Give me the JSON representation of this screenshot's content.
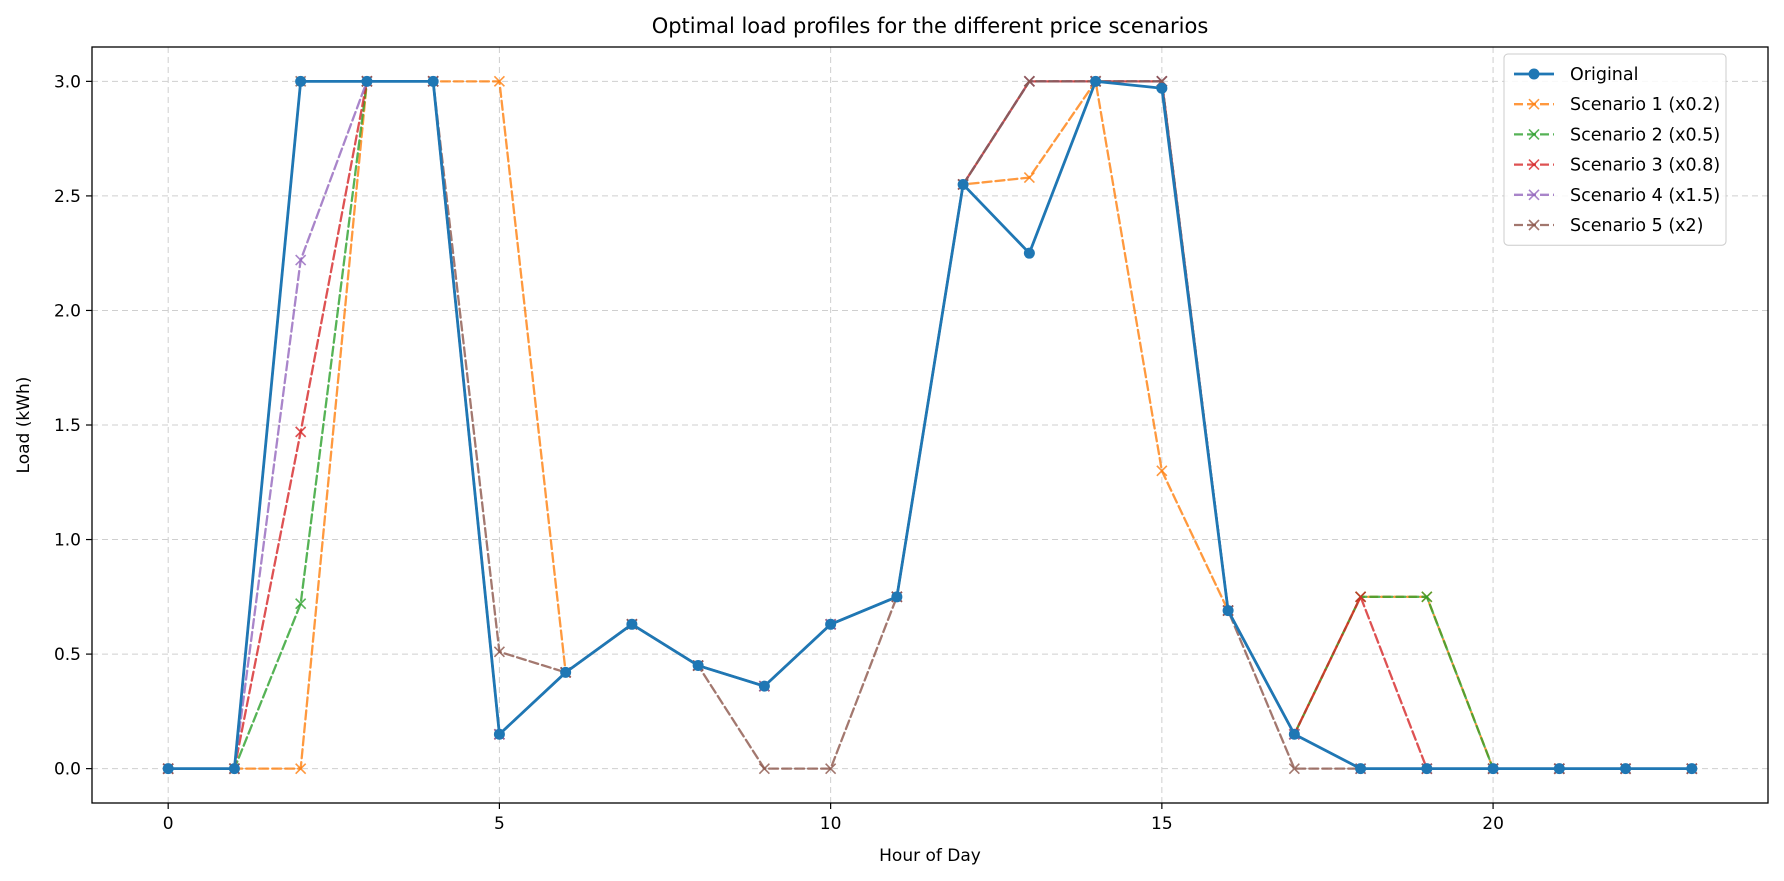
{
  "chart_data": {
    "type": "line",
    "title": "Optimal load profiles for the different price scenarios",
    "xlabel": "Hour of Day",
    "ylabel": "Load (kWh)",
    "xlim": [
      -1.15,
      24.15
    ],
    "ylim": [
      -0.15,
      3.15
    ],
    "xticks": [
      0,
      5,
      10,
      15,
      20
    ],
    "yticks": [
      0.0,
      0.5,
      1.0,
      1.5,
      2.0,
      2.5,
      3.0
    ],
    "xtick_labels": [
      "0",
      "5",
      "10",
      "15",
      "20"
    ],
    "ytick_labels": [
      "0.0",
      "0.5",
      "1.0",
      "1.5",
      "2.0",
      "2.5",
      "3.0"
    ],
    "grid": true,
    "legend_position": "top-right",
    "x": [
      0,
      1,
      2,
      3,
      4,
      5,
      6,
      7,
      8,
      9,
      10,
      11,
      12,
      13,
      14,
      15,
      16,
      17,
      18,
      19,
      20,
      21,
      22,
      23
    ],
    "series": [
      {
        "name": "Original",
        "color": "#1f77b4",
        "style": "solid",
        "marker": "circle",
        "values": [
          0,
          0,
          3,
          3,
          3,
          0.15,
          0.42,
          0.63,
          0.45,
          0.36,
          0.63,
          0.75,
          2.55,
          2.25,
          3,
          2.97,
          0.69,
          0.15,
          0,
          0,
          0,
          0,
          0,
          0
        ]
      },
      {
        "name": "Scenario 1 (x0.2)",
        "color": "#ff7f0e",
        "style": "dashed",
        "marker": "x",
        "values": [
          0,
          0,
          0,
          3,
          3,
          3,
          0.42,
          0.63,
          0.45,
          0.36,
          0.63,
          0.75,
          2.55,
          2.58,
          3,
          1.3,
          0.69,
          0.15,
          0.75,
          0.75,
          0,
          0,
          0,
          0
        ]
      },
      {
        "name": "Scenario 2 (x0.5)",
        "color": "#2ca02c",
        "style": "dashed",
        "marker": "x",
        "values": [
          0,
          0,
          0.72,
          3,
          3,
          0.15,
          0.42,
          0.63,
          0.45,
          0.36,
          0.63,
          0.75,
          2.55,
          3,
          3,
          3,
          0.69,
          0.15,
          0.75,
          0.75,
          0,
          0,
          0,
          0
        ]
      },
      {
        "name": "Scenario 3 (x0.8)",
        "color": "#d62728",
        "style": "dashed",
        "marker": "x",
        "values": [
          0,
          0,
          1.47,
          3,
          3,
          0.15,
          0.42,
          0.63,
          0.45,
          0.36,
          0.63,
          0.75,
          2.55,
          3,
          3,
          3,
          0.69,
          0.15,
          0.75,
          0,
          0,
          0,
          0,
          0
        ]
      },
      {
        "name": "Scenario 4 (x1.5)",
        "color": "#9467bd",
        "style": "dashed",
        "marker": "x",
        "values": [
          0,
          0,
          2.22,
          3,
          3,
          0.15,
          0.42,
          0.63,
          0.45,
          0.36,
          0.63,
          0.75,
          2.55,
          3,
          3,
          3,
          0.69,
          0.15,
          0,
          0,
          0,
          0,
          0,
          0
        ]
      },
      {
        "name": "Scenario 5 (x2)",
        "color": "#8c564b",
        "style": "dashed",
        "marker": "x",
        "values": [
          0,
          0,
          3,
          3,
          3,
          0.51,
          0.42,
          0.63,
          0.45,
          0,
          0,
          0.75,
          2.55,
          3,
          3,
          3,
          0.69,
          0,
          0,
          0,
          0,
          0,
          0,
          0
        ]
      }
    ]
  }
}
